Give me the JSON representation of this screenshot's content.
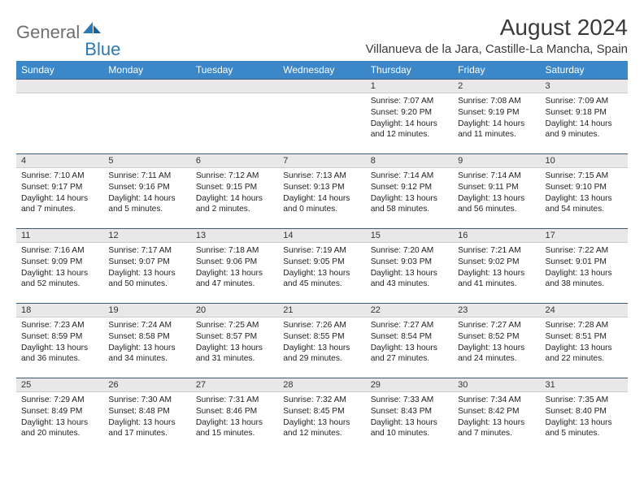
{
  "brand": {
    "word1": "General",
    "word2": "Blue"
  },
  "title": "August 2024",
  "location": "Villanueva de la Jara, Castille-La Mancha, Spain",
  "colors": {
    "header_bg": "#3b87c8",
    "header_text": "#ffffff",
    "daynum_bg": "#e8e8e8",
    "daynum_border_top": "#3b5b7a",
    "body_text": "#222222",
    "page_bg": "#ffffff",
    "brand_gray": "#6f6f6f",
    "brand_blue": "#2a7ab8"
  },
  "day_headers": [
    "Sunday",
    "Monday",
    "Tuesday",
    "Wednesday",
    "Thursday",
    "Friday",
    "Saturday"
  ],
  "weeks": [
    [
      {
        "n": "",
        "sunrise": "",
        "sunset": "",
        "day": ""
      },
      {
        "n": "",
        "sunrise": "",
        "sunset": "",
        "day": ""
      },
      {
        "n": "",
        "sunrise": "",
        "sunset": "",
        "day": ""
      },
      {
        "n": "",
        "sunrise": "",
        "sunset": "",
        "day": ""
      },
      {
        "n": "1",
        "sunrise": "Sunrise: 7:07 AM",
        "sunset": "Sunset: 9:20 PM",
        "day": "Daylight: 14 hours and 12 minutes."
      },
      {
        "n": "2",
        "sunrise": "Sunrise: 7:08 AM",
        "sunset": "Sunset: 9:19 PM",
        "day": "Daylight: 14 hours and 11 minutes."
      },
      {
        "n": "3",
        "sunrise": "Sunrise: 7:09 AM",
        "sunset": "Sunset: 9:18 PM",
        "day": "Daylight: 14 hours and 9 minutes."
      }
    ],
    [
      {
        "n": "4",
        "sunrise": "Sunrise: 7:10 AM",
        "sunset": "Sunset: 9:17 PM",
        "day": "Daylight: 14 hours and 7 minutes."
      },
      {
        "n": "5",
        "sunrise": "Sunrise: 7:11 AM",
        "sunset": "Sunset: 9:16 PM",
        "day": "Daylight: 14 hours and 5 minutes."
      },
      {
        "n": "6",
        "sunrise": "Sunrise: 7:12 AM",
        "sunset": "Sunset: 9:15 PM",
        "day": "Daylight: 14 hours and 2 minutes."
      },
      {
        "n": "7",
        "sunrise": "Sunrise: 7:13 AM",
        "sunset": "Sunset: 9:13 PM",
        "day": "Daylight: 14 hours and 0 minutes."
      },
      {
        "n": "8",
        "sunrise": "Sunrise: 7:14 AM",
        "sunset": "Sunset: 9:12 PM",
        "day": "Daylight: 13 hours and 58 minutes."
      },
      {
        "n": "9",
        "sunrise": "Sunrise: 7:14 AM",
        "sunset": "Sunset: 9:11 PM",
        "day": "Daylight: 13 hours and 56 minutes."
      },
      {
        "n": "10",
        "sunrise": "Sunrise: 7:15 AM",
        "sunset": "Sunset: 9:10 PM",
        "day": "Daylight: 13 hours and 54 minutes."
      }
    ],
    [
      {
        "n": "11",
        "sunrise": "Sunrise: 7:16 AM",
        "sunset": "Sunset: 9:09 PM",
        "day": "Daylight: 13 hours and 52 minutes."
      },
      {
        "n": "12",
        "sunrise": "Sunrise: 7:17 AM",
        "sunset": "Sunset: 9:07 PM",
        "day": "Daylight: 13 hours and 50 minutes."
      },
      {
        "n": "13",
        "sunrise": "Sunrise: 7:18 AM",
        "sunset": "Sunset: 9:06 PM",
        "day": "Daylight: 13 hours and 47 minutes."
      },
      {
        "n": "14",
        "sunrise": "Sunrise: 7:19 AM",
        "sunset": "Sunset: 9:05 PM",
        "day": "Daylight: 13 hours and 45 minutes."
      },
      {
        "n": "15",
        "sunrise": "Sunrise: 7:20 AM",
        "sunset": "Sunset: 9:03 PM",
        "day": "Daylight: 13 hours and 43 minutes."
      },
      {
        "n": "16",
        "sunrise": "Sunrise: 7:21 AM",
        "sunset": "Sunset: 9:02 PM",
        "day": "Daylight: 13 hours and 41 minutes."
      },
      {
        "n": "17",
        "sunrise": "Sunrise: 7:22 AM",
        "sunset": "Sunset: 9:01 PM",
        "day": "Daylight: 13 hours and 38 minutes."
      }
    ],
    [
      {
        "n": "18",
        "sunrise": "Sunrise: 7:23 AM",
        "sunset": "Sunset: 8:59 PM",
        "day": "Daylight: 13 hours and 36 minutes."
      },
      {
        "n": "19",
        "sunrise": "Sunrise: 7:24 AM",
        "sunset": "Sunset: 8:58 PM",
        "day": "Daylight: 13 hours and 34 minutes."
      },
      {
        "n": "20",
        "sunrise": "Sunrise: 7:25 AM",
        "sunset": "Sunset: 8:57 PM",
        "day": "Daylight: 13 hours and 31 minutes."
      },
      {
        "n": "21",
        "sunrise": "Sunrise: 7:26 AM",
        "sunset": "Sunset: 8:55 PM",
        "day": "Daylight: 13 hours and 29 minutes."
      },
      {
        "n": "22",
        "sunrise": "Sunrise: 7:27 AM",
        "sunset": "Sunset: 8:54 PM",
        "day": "Daylight: 13 hours and 27 minutes."
      },
      {
        "n": "23",
        "sunrise": "Sunrise: 7:27 AM",
        "sunset": "Sunset: 8:52 PM",
        "day": "Daylight: 13 hours and 24 minutes."
      },
      {
        "n": "24",
        "sunrise": "Sunrise: 7:28 AM",
        "sunset": "Sunset: 8:51 PM",
        "day": "Daylight: 13 hours and 22 minutes."
      }
    ],
    [
      {
        "n": "25",
        "sunrise": "Sunrise: 7:29 AM",
        "sunset": "Sunset: 8:49 PM",
        "day": "Daylight: 13 hours and 20 minutes."
      },
      {
        "n": "26",
        "sunrise": "Sunrise: 7:30 AM",
        "sunset": "Sunset: 8:48 PM",
        "day": "Daylight: 13 hours and 17 minutes."
      },
      {
        "n": "27",
        "sunrise": "Sunrise: 7:31 AM",
        "sunset": "Sunset: 8:46 PM",
        "day": "Daylight: 13 hours and 15 minutes."
      },
      {
        "n": "28",
        "sunrise": "Sunrise: 7:32 AM",
        "sunset": "Sunset: 8:45 PM",
        "day": "Daylight: 13 hours and 12 minutes."
      },
      {
        "n": "29",
        "sunrise": "Sunrise: 7:33 AM",
        "sunset": "Sunset: 8:43 PM",
        "day": "Daylight: 13 hours and 10 minutes."
      },
      {
        "n": "30",
        "sunrise": "Sunrise: 7:34 AM",
        "sunset": "Sunset: 8:42 PM",
        "day": "Daylight: 13 hours and 7 minutes."
      },
      {
        "n": "31",
        "sunrise": "Sunrise: 7:35 AM",
        "sunset": "Sunset: 8:40 PM",
        "day": "Daylight: 13 hours and 5 minutes."
      }
    ]
  ]
}
